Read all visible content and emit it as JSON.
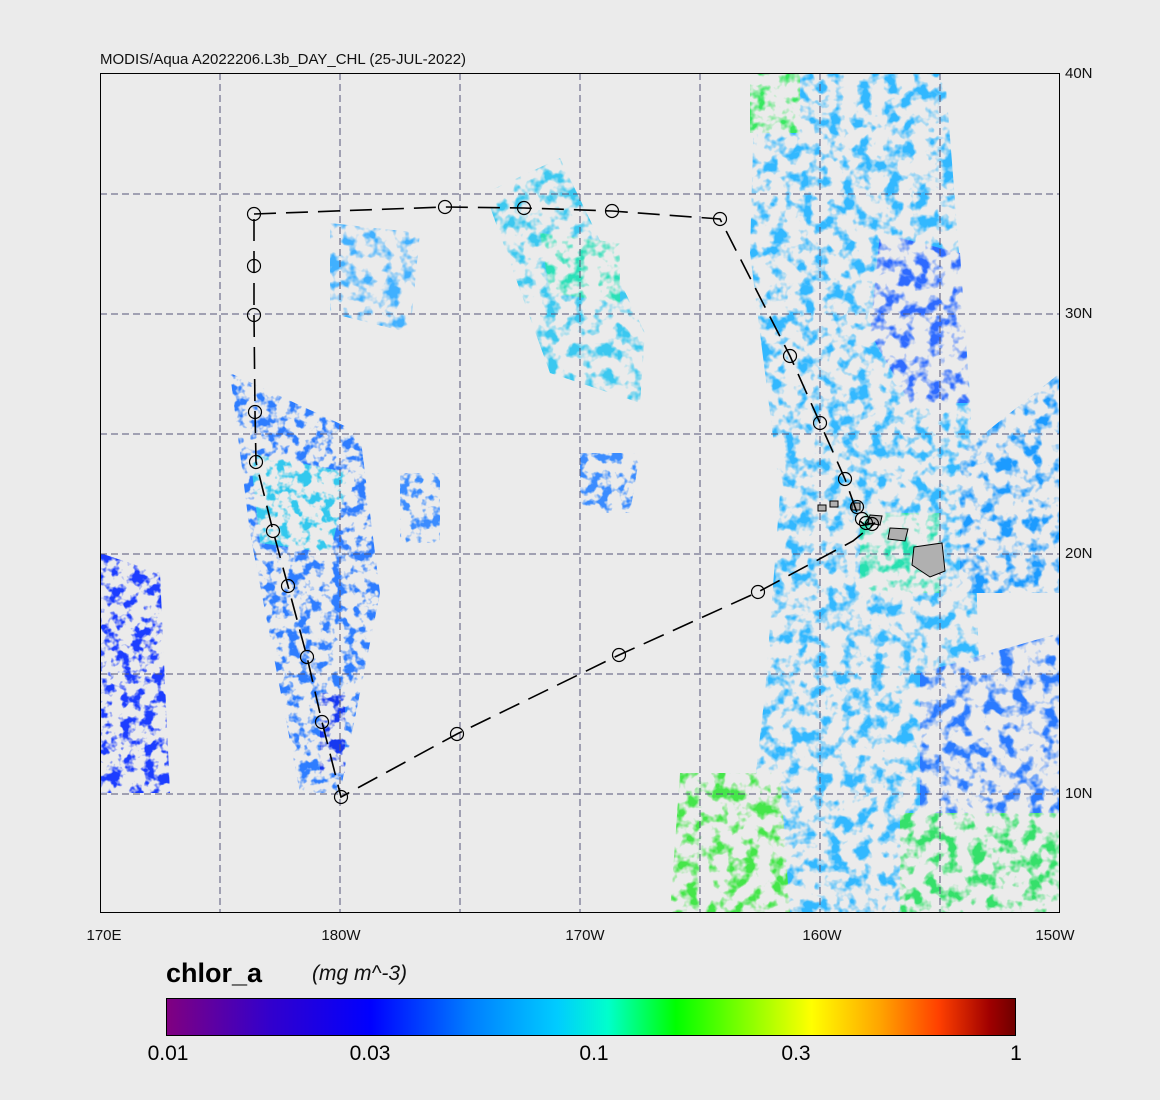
{
  "title": "MODIS/Aqua A2022206.L3b_DAY_CHL (25-JUL-2022)",
  "lat_labels": [
    "40N",
    "30N",
    "20N",
    "10N"
  ],
  "lon_labels": [
    "170E",
    "180W",
    "170W",
    "160W",
    "150W"
  ],
  "colorbar": {
    "variable": "chlor_a",
    "units": "(mg m^-3)",
    "ticks": [
      "0.01",
      "0.03",
      "0.1",
      "0.3",
      "1"
    ]
  }
}
